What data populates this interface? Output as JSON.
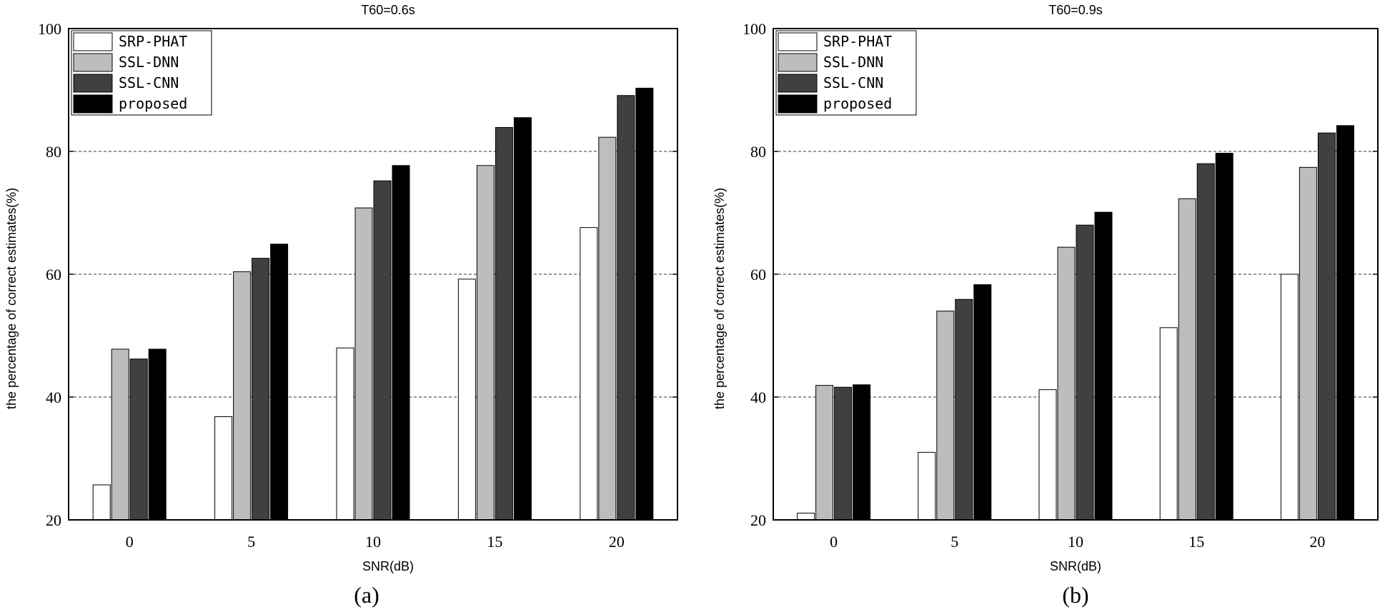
{
  "chart_data": [
    {
      "type": "bar",
      "title": "T60=0.6s",
      "panel_label": "(a)",
      "xlabel": "SNR(dB)",
      "ylabel": "the percentage of correct estimates(%)",
      "ylim": [
        20,
        100
      ],
      "yticks": [
        20,
        40,
        60,
        80,
        100
      ],
      "categories": [
        "0",
        "5",
        "10",
        "15",
        "20"
      ],
      "grid": "horizontal dashed at 40, 60, 80",
      "legend_position": "top-left",
      "series": [
        {
          "name": "SRP-PHAT",
          "color": "#ffffff",
          "values": [
            25.7,
            36.8,
            48.0,
            59.2,
            67.6
          ]
        },
        {
          "name": "SSL-DNN",
          "color": "#bdbdbd",
          "values": [
            47.8,
            60.4,
            70.8,
            77.7,
            82.3
          ]
        },
        {
          "name": "SSL-CNN",
          "color": "#404040",
          "values": [
            46.2,
            62.6,
            75.2,
            83.9,
            89.1
          ]
        },
        {
          "name": "proposed",
          "color": "#000000",
          "values": [
            47.8,
            64.9,
            77.7,
            85.5,
            90.3
          ]
        }
      ]
    },
    {
      "type": "bar",
      "title": "T60=0.9s",
      "panel_label": "(b)",
      "xlabel": "SNR(dB)",
      "ylabel": "the percentage of correct estimates(%)",
      "ylim": [
        20,
        100
      ],
      "yticks": [
        20,
        40,
        60,
        80,
        100
      ],
      "categories": [
        "0",
        "5",
        "10",
        "15",
        "20"
      ],
      "grid": "horizontal dashed at 40, 60, 80",
      "legend_position": "top-left",
      "series": [
        {
          "name": "SRP-PHAT",
          "color": "#ffffff",
          "values": [
            21.1,
            31.0,
            41.2,
            51.3,
            60.0
          ]
        },
        {
          "name": "SSL-DNN",
          "color": "#bdbdbd",
          "values": [
            41.9,
            54.0,
            64.4,
            72.3,
            77.4
          ]
        },
        {
          "name": "SSL-CNN",
          "color": "#404040",
          "values": [
            41.6,
            55.9,
            68.0,
            78.0,
            83.0
          ]
        },
        {
          "name": "proposed",
          "color": "#000000",
          "values": [
            42.0,
            58.3,
            70.1,
            79.7,
            84.2
          ]
        }
      ]
    }
  ]
}
